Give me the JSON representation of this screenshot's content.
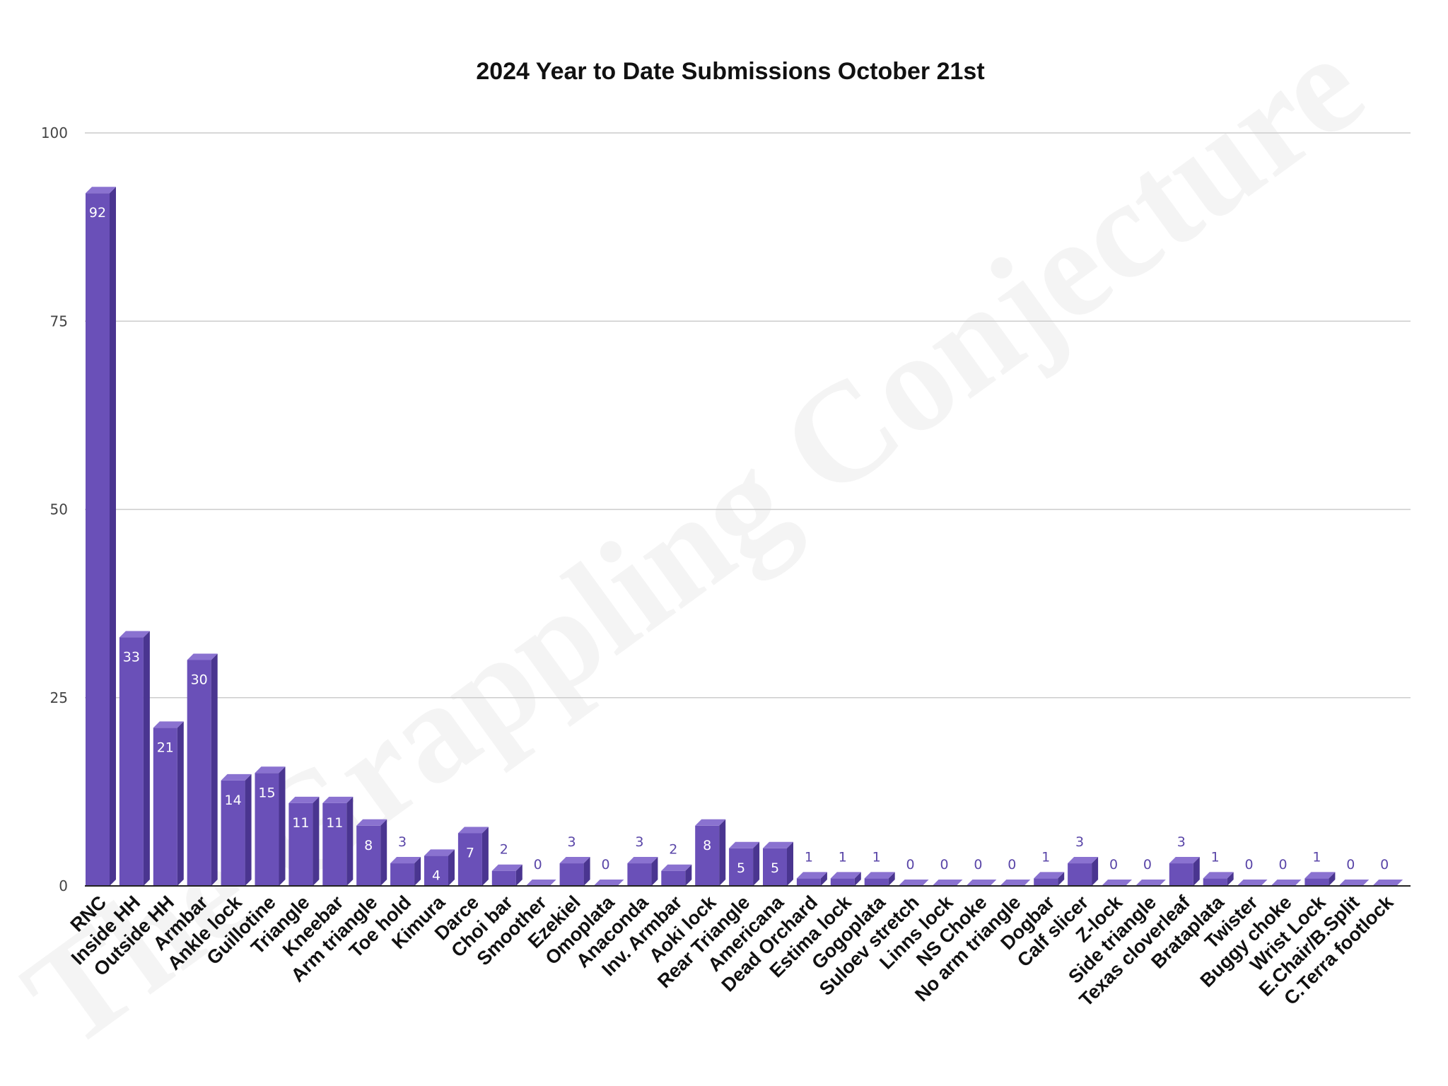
{
  "watermark": "The Grappling Conjecture",
  "colors": {
    "bar_front": "#6a50b8",
    "bar_side": "#4a3590",
    "bar_top": "#8a72d0",
    "grid": "#cccccc",
    "axis": "#222222"
  },
  "chart_data": {
    "type": "bar",
    "title": "2024 Year to Date Submissions October 21st",
    "xlabel": "",
    "ylabel": "",
    "ylim": [
      0,
      100
    ],
    "yticks": [
      "0",
      "25",
      "50",
      "75",
      "100"
    ],
    "grid": true,
    "legend": "none",
    "categories": [
      "RNC",
      "Inside HH",
      "Outside HH",
      "Armbar",
      "Ankle lock",
      "Guillotine",
      "Triangle",
      "Kneebar",
      "Arm triangle",
      "Toe hold",
      "Kimura",
      "Darce",
      "Choi bar",
      "Smoother",
      "Ezekiel",
      "Omoplata",
      "Anaconda",
      "Inv. Armbar",
      "Aoki lock",
      "Rear Triangle",
      "Americana",
      "Dead Orchard",
      "Estima lock",
      "Gogoplata",
      "Suloev stretch",
      "Linns lock",
      "NS Choke",
      "No arm triangle",
      "Dogbar",
      "Calf slicer",
      "Z-lock",
      "Side triangle",
      "Texas cloverleaf",
      "Brataplata",
      "Twister",
      "Buggy choke",
      "Wrist Lock",
      "E.Chair/B.Split",
      "C.Terra footlock"
    ],
    "values": [
      92,
      33,
      21,
      30,
      14,
      15,
      11,
      11,
      8,
      3,
      4,
      7,
      2,
      0,
      3,
      0,
      3,
      2,
      8,
      5,
      5,
      1,
      1,
      1,
      0,
      0,
      0,
      0,
      1,
      3,
      0,
      0,
      3,
      1,
      0,
      0,
      1,
      0,
      0
    ],
    "value_labels": [
      "92",
      "33",
      "21",
      "30",
      "14",
      "15",
      "11",
      "11",
      "8",
      "3",
      "4",
      "7",
      "2",
      "0",
      "3",
      "0",
      "3",
      "2",
      "8",
      "5",
      "5",
      "1",
      "1",
      "1",
      "0",
      "0",
      "0",
      "0",
      "1",
      "3",
      "0",
      "0",
      "3",
      "1",
      "0",
      "0",
      "1",
      "0",
      "0"
    ]
  }
}
